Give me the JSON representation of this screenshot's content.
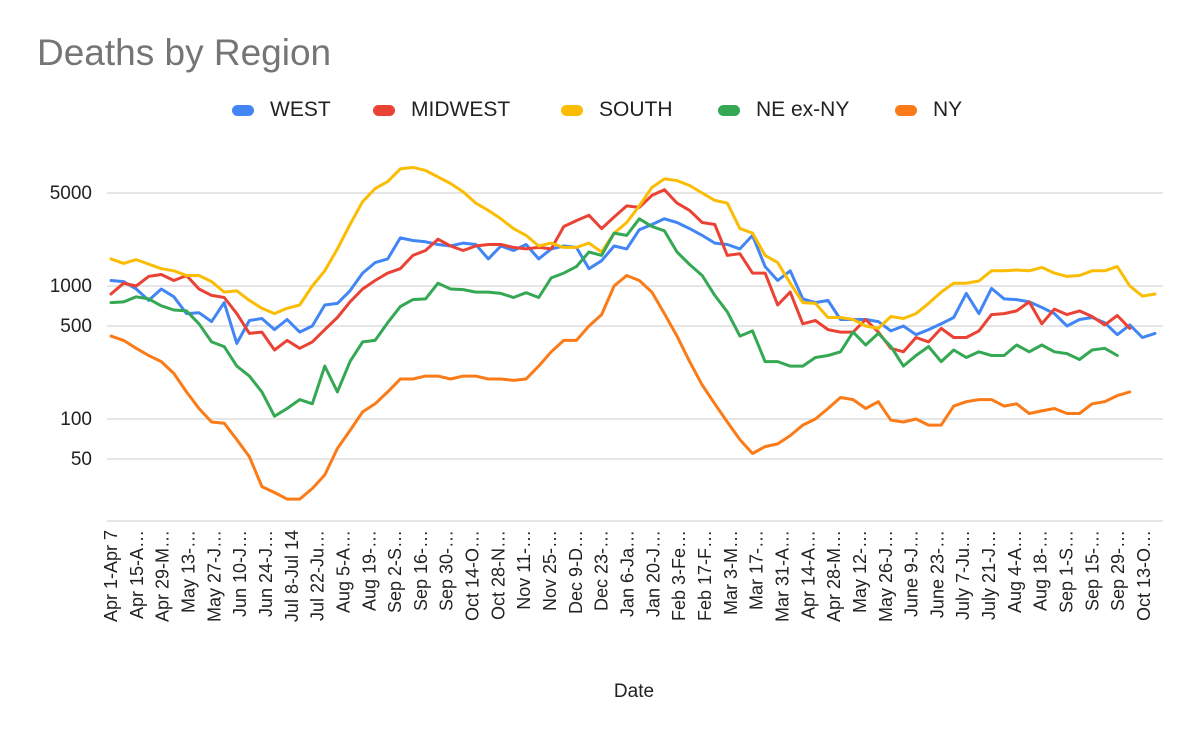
{
  "chart_data": {
    "type": "line",
    "title": "Deaths by Region",
    "xlabel": "Date",
    "ylabel": "",
    "y_scale": "log",
    "ylim": [
      20,
      11000
    ],
    "yticks": [
      50,
      100,
      500,
      1000,
      5000
    ],
    "ytick_labels": [
      "50",
      "100",
      "500",
      "1000",
      "5000"
    ],
    "grid": true,
    "legend_position": "top",
    "x_tick_labels": [
      "Apr 1-Apr 7",
      "Apr 15-A…",
      "Apr 29-M…",
      "May 13-…",
      "May 27-J…",
      "Jun 10-J…",
      "Jun 24-J…",
      "Jul 8-Jul 14",
      "Jul 22-Ju…",
      "Aug 5-A…",
      "Aug 19-…",
      "Sep 2-S…",
      "Sep 16-…",
      "Sep 30-…",
      "Oct 14-O…",
      "Oct 28-N…",
      "Nov 11-…",
      "Nov 25-…",
      "Dec 9-D…",
      "Dec 23-…",
      "Jan 6-Ja…",
      "Jan 20-J…",
      "Feb 3-Fe…",
      "Feb 17-F…",
      "Mar 3-M…",
      "Mar 17-…",
      "Mar 31-A…",
      "Apr 14-A…",
      "Apr 28-M…",
      "May 12-…",
      "May 26-J…",
      "June 9-J…",
      "June 23-…",
      "July 7-Ju…",
      "July 21-J…",
      "Aug 4-A…",
      "Aug 18-…",
      "Sep 1-S…",
      "Sep 15-…",
      "Sep 29-…",
      "Oct 13-O…"
    ],
    "series": [
      {
        "name": "WEST",
        "color": "#4285f4",
        "values": [
          1100,
          1080,
          950,
          780,
          950,
          830,
          620,
          630,
          540,
          750,
          370,
          550,
          570,
          470,
          560,
          450,
          500,
          720,
          740,
          920,
          1250,
          1500,
          1600,
          2300,
          2200,
          2150,
          2050,
          2000,
          2100,
          2050,
          1600,
          2000,
          1850,
          2050,
          1600,
          1900,
          2000,
          1950,
          1350,
          1550,
          2000,
          1900,
          2650,
          2900,
          3200,
          3000,
          2700,
          2400,
          2100,
          2050,
          1900,
          2400,
          1400,
          1100,
          1300,
          800,
          750,
          780,
          560,
          560,
          560,
          540,
          460,
          500,
          430,
          470,
          520,
          580,
          880,
          620,
          960,
          800,
          790,
          760,
          690,
          620,
          500,
          560,
          580,
          530,
          430,
          510,
          410,
          440
        ]
      },
      {
        "name": "MIDWEST",
        "color": "#ea4335",
        "values": [
          870,
          1050,
          1000,
          1180,
          1220,
          1100,
          1200,
          950,
          850,
          820,
          620,
          440,
          450,
          330,
          390,
          340,
          380,
          470,
          580,
          760,
          950,
          1100,
          1250,
          1350,
          1700,
          1850,
          2250,
          2000,
          1850,
          2000,
          2050,
          2050,
          1950,
          1900,
          1950,
          1900,
          2800,
          3100,
          3400,
          2700,
          3300,
          4000,
          3900,
          4800,
          5300,
          4200,
          3700,
          3000,
          2900,
          1700,
          1750,
          1250,
          1250,
          720,
          900,
          520,
          550,
          470,
          450,
          450,
          560,
          450,
          340,
          320,
          410,
          380,
          480,
          410,
          410,
          460,
          610,
          620,
          650,
          760,
          520,
          670,
          610,
          650,
          590,
          510,
          600,
          480
        ]
      },
      {
        "name": "SOUTH",
        "color": "#fbbc04",
        "values": [
          1600,
          1480,
          1580,
          1460,
          1350,
          1300,
          1200,
          1200,
          1080,
          900,
          920,
          780,
          680,
          620,
          680,
          720,
          1000,
          1300,
          1900,
          2900,
          4300,
          5400,
          6100,
          7600,
          7800,
          7400,
          6600,
          5900,
          5100,
          4200,
          3700,
          3200,
          2700,
          2400,
          2000,
          2100,
          1950,
          1950,
          2100,
          1800,
          2500,
          3000,
          4000,
          5500,
          6400,
          6200,
          5700,
          5000,
          4400,
          4200,
          2700,
          2500,
          1700,
          1500,
          1050,
          750,
          740,
          580,
          580,
          560,
          500,
          480,
          590,
          570,
          620,
          740,
          900,
          1050,
          1050,
          1090,
          1300,
          1300,
          1320,
          1300,
          1380,
          1250,
          1180,
          1200,
          1300,
          1300,
          1400,
          1000,
          840,
          870
        ]
      },
      {
        "name": "NE ex-NY",
        "color": "#34a853",
        "values": [
          750,
          760,
          830,
          800,
          710,
          660,
          650,
          520,
          380,
          350,
          250,
          210,
          160,
          105,
          120,
          140,
          130,
          250,
          160,
          270,
          380,
          390,
          530,
          700,
          790,
          800,
          1050,
          950,
          940,
          900,
          900,
          880,
          820,
          890,
          820,
          1150,
          1250,
          1400,
          1800,
          1700,
          2500,
          2400,
          3200,
          2800,
          2600,
          1800,
          1450,
          1200,
          850,
          640,
          420,
          460,
          270,
          270,
          250,
          250,
          290,
          300,
          320,
          450,
          360,
          440,
          350,
          250,
          300,
          350,
          270,
          330,
          290,
          320,
          300,
          300,
          360,
          320,
          360,
          320,
          310,
          280,
          330,
          340,
          300
        ]
      },
      {
        "name": "NY",
        "color": "#fa7b17",
        "values": [
          420,
          390,
          340,
          300,
          270,
          220,
          160,
          120,
          95,
          93,
          70,
          52,
          31,
          28,
          25,
          25,
          30,
          38,
          60,
          82,
          113,
          130,
          160,
          200,
          200,
          210,
          210,
          200,
          210,
          210,
          200,
          200,
          195,
          200,
          250,
          320,
          390,
          390,
          500,
          610,
          1000,
          1200,
          1100,
          900,
          620,
          420,
          270,
          180,
          130,
          95,
          70,
          55,
          62,
          65,
          75,
          90,
          100,
          120,
          145,
          140,
          120,
          135,
          98,
          95,
          100,
          90,
          90,
          125,
          135,
          140,
          140,
          125,
          130,
          110,
          115,
          120,
          110,
          110,
          130,
          135,
          150,
          160
        ]
      }
    ]
  }
}
